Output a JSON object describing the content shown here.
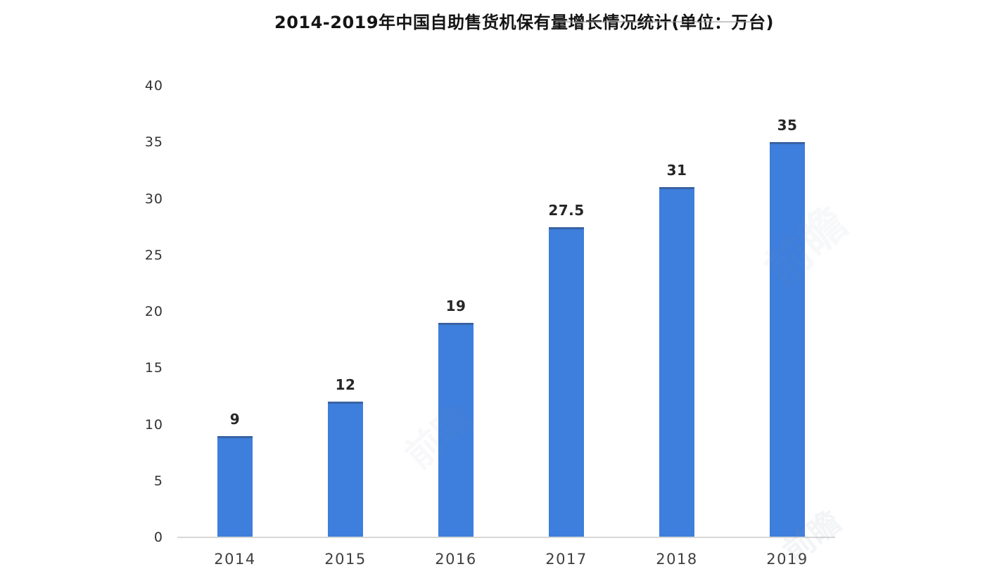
{
  "title": {
    "text": "2014-2019年中国自助售货机保有量增长情况统计(单位：万台)"
  },
  "watermark": {
    "text": "前瞻"
  },
  "chart_data": {
    "type": "bar",
    "title": "2014-2019年中国自助售货机保有量增长情况统计(单位：万台)",
    "categories": [
      "2014",
      "2015",
      "2016",
      "2017",
      "2018",
      "2019"
    ],
    "values": [
      9,
      12,
      19,
      27.5,
      31,
      35
    ],
    "value_labels": [
      "9",
      "12",
      "19",
      "27.5",
      "31",
      "35"
    ],
    "xlabel": "",
    "ylabel": "",
    "unit": "万台",
    "ylim": [
      0,
      40
    ],
    "yticks": [
      0,
      5,
      10,
      15,
      20,
      25,
      30,
      35,
      40
    ],
    "grid": false,
    "legend": "none",
    "bar_color": "#3e7edc",
    "axis_line_color": "#d8d8d8",
    "label_color": "#262626",
    "tick_color": "#323232"
  }
}
